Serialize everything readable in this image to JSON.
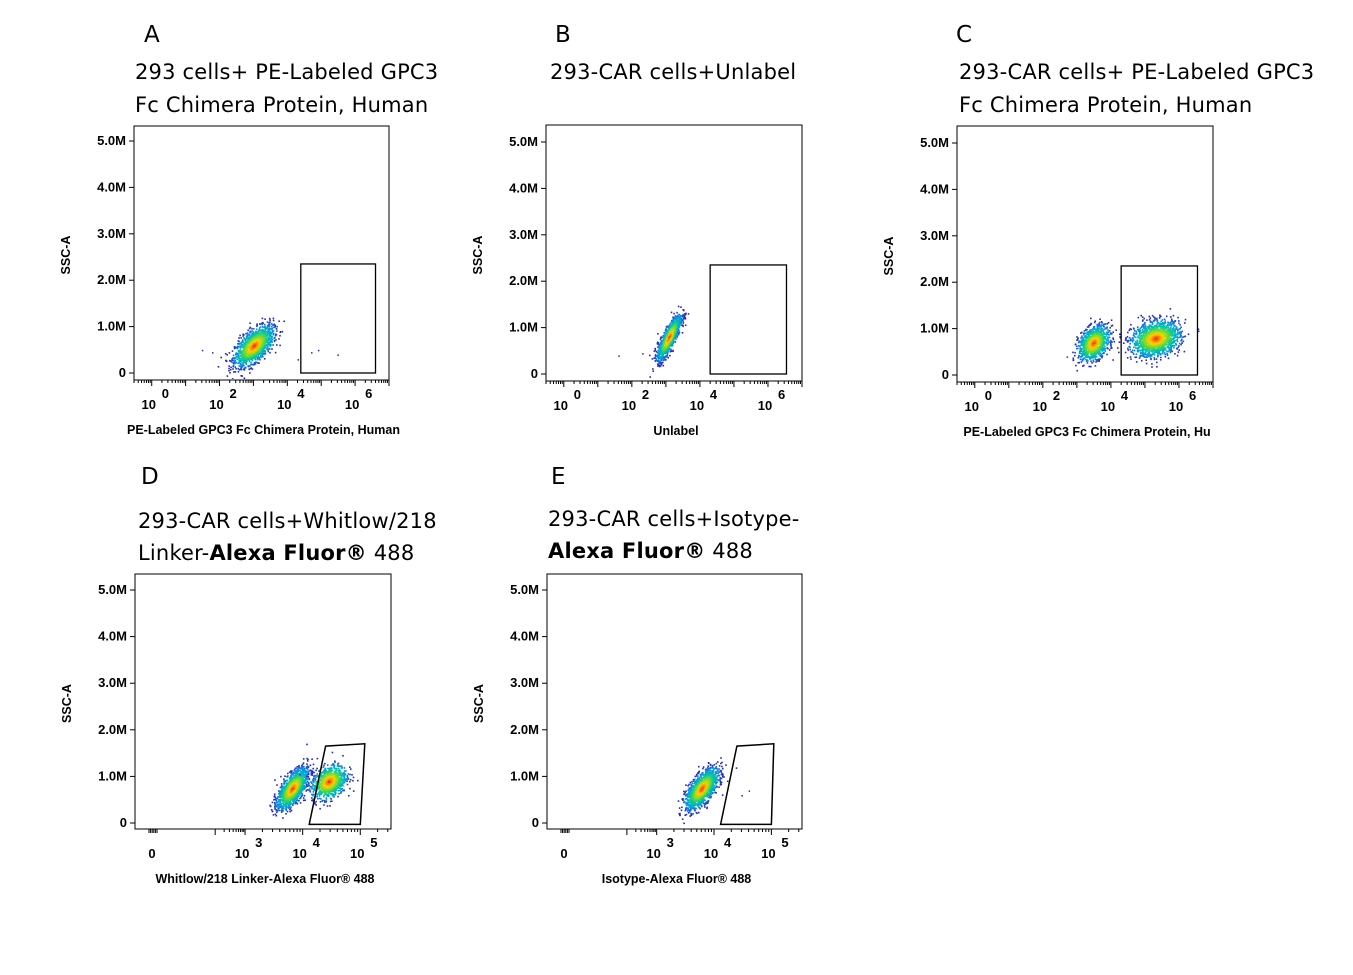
{
  "panels": [
    {
      "letter": "A",
      "title_line1": "293 cells+ PE-Labeled GPC3",
      "title_line2": "Fc Chimera Protein, Human",
      "title_line2_bold": "",
      "title_line2_rest": ""
    },
    {
      "letter": "B",
      "title_line1": "293-CAR cells+Unlabel",
      "title_line2": "",
      "title_line2_bold": "",
      "title_line2_rest": ""
    },
    {
      "letter": "C",
      "title_line1": "293-CAR  cells+  PE-Labeled  GPC3",
      "title_line2": "Fc Chimera Protein, Human",
      "title_line2_bold": "",
      "title_line2_rest": ""
    },
    {
      "letter": "D",
      "title_line1": "293-CAR   cells+Whitlow/218",
      "title_line2": "Linker-",
      "title_line2_bold": "Alexa Fluor®",
      "title_line2_rest": " 488"
    },
    {
      "letter": "E",
      "title_line1": "293-CAR      cells+Isotype-",
      "title_line2": "",
      "title_line2_bold": "Alexa Fluor®",
      "title_line2_rest": " 488"
    }
  ],
  "chart_data": [
    {
      "type": "scatter",
      "panel": "A",
      "xlabel": "PE-Labeled GPC3 Fc Chimera Protein, Human",
      "ylabel": "SSC-A",
      "x_scale": "log",
      "xlim": [
        0.3,
        10000000
      ],
      "x_tick_labels": [
        {
          "base": "10",
          "exp": "0",
          "value": 1
        },
        {
          "base": "10",
          "exp": "2",
          "value": 100
        },
        {
          "base": "10",
          "exp": "4",
          "value": 10000
        },
        {
          "base": "10",
          "exp": "6",
          "value": 1000000
        }
      ],
      "ylim": [
        -200000,
        5300000
      ],
      "y_tick_labels": [
        {
          "label": "0",
          "value": 0
        },
        {
          "label": "1.0M",
          "value": 1000000
        },
        {
          "label": "2.0M",
          "value": 2000000
        },
        {
          "label": "3.0M",
          "value": 3000000
        },
        {
          "label": "4.0M",
          "value": 4000000
        },
        {
          "label": "5.0M",
          "value": 5000000
        }
      ],
      "populations": [
        {
          "center_x": 1000,
          "center_y": 600000,
          "spread_x_decades": 0.28,
          "spread_y": 230000,
          "tilt": 0.55,
          "count": 1500
        }
      ],
      "stray_points": [
        [
          30,
          500000
        ],
        [
          60,
          450000
        ],
        [
          20000,
          300000
        ],
        [
          50000,
          450000
        ],
        [
          80000,
          500000
        ],
        [
          300000,
          400000
        ]
      ],
      "gate": {
        "shape": "rectangle",
        "x": [
          25000,
          4000000
        ],
        "y": [
          0,
          2350000
        ]
      }
    },
    {
      "type": "scatter",
      "panel": "B",
      "xlabel": "Unlabel",
      "ylabel": "SSC-A",
      "x_scale": "log",
      "xlim": [
        0.3,
        10000000
      ],
      "x_tick_labels": [
        {
          "base": "10",
          "exp": "0",
          "value": 1
        },
        {
          "base": "10",
          "exp": "2",
          "value": 100
        },
        {
          "base": "10",
          "exp": "4",
          "value": 10000
        },
        {
          "base": "10",
          "exp": "6",
          "value": 1000000
        }
      ],
      "ylim": [
        -200000,
        5300000
      ],
      "y_tick_labels": [
        {
          "label": "0",
          "value": 0
        },
        {
          "label": "1.0M",
          "value": 1000000
        },
        {
          "label": "2.0M",
          "value": 2000000
        },
        {
          "label": "3.0M",
          "value": 3000000
        },
        {
          "label": "4.0M",
          "value": 4000000
        },
        {
          "label": "5.0M",
          "value": 5000000
        }
      ],
      "populations": [
        {
          "center_x": 1200,
          "center_y": 800000,
          "spread_x_decades": 0.17,
          "spread_y": 230000,
          "tilt": 0.85,
          "count": 1300
        }
      ],
      "stray_points": [
        [
          40,
          400000
        ],
        [
          200,
          450000
        ],
        [
          500,
          500000
        ]
      ],
      "gate": {
        "shape": "rectangle",
        "x": [
          20000,
          3500000
        ],
        "y": [
          0,
          2350000
        ]
      }
    },
    {
      "type": "scatter",
      "panel": "C",
      "xlabel": "PE-Labeled GPC3 Fc Chimera Protein, Hu",
      "ylabel": "SSC-A",
      "x_scale": "log",
      "xlim": [
        0.3,
        10000000
      ],
      "x_tick_labels": [
        {
          "base": "10",
          "exp": "0",
          "value": 1
        },
        {
          "base": "10",
          "exp": "2",
          "value": 100
        },
        {
          "base": "10",
          "exp": "4",
          "value": 10000
        },
        {
          "base": "10",
          "exp": "6",
          "value": 1000000
        }
      ],
      "ylim": [
        -200000,
        5300000
      ],
      "y_tick_labels": [
        {
          "label": "0",
          "value": 0
        },
        {
          "label": "1.0M",
          "value": 1000000
        },
        {
          "label": "2.0M",
          "value": 2000000
        },
        {
          "label": "3.0M",
          "value": 3000000
        },
        {
          "label": "4.0M",
          "value": 4000000
        },
        {
          "label": "5.0M",
          "value": 5000000
        }
      ],
      "populations": [
        {
          "center_x": 3000,
          "center_y": 700000,
          "spread_x_decades": 0.22,
          "spread_y": 200000,
          "tilt": 0.3,
          "count": 1100
        },
        {
          "center_x": 200000,
          "center_y": 800000,
          "spread_x_decades": 0.35,
          "spread_y": 200000,
          "tilt": 0.2,
          "count": 1500
        }
      ],
      "stray_points": [
        [
          500,
          400000
        ]
      ],
      "gate": {
        "shape": "rectangle",
        "x": [
          20000,
          3500000
        ],
        "y": [
          0,
          2350000
        ]
      }
    },
    {
      "type": "scatter",
      "panel": "D",
      "xlabel": "Whitlow/218 Linker-Alexa Fluor® 488",
      "ylabel": "SSC-A",
      "x_scale": "biexponential",
      "x_tick_labels": [
        {
          "base": "0",
          "exp": "",
          "value": 0
        },
        {
          "base": "10",
          "exp": "3",
          "value": 1000
        },
        {
          "base": "10",
          "exp": "4",
          "value": 10000
        },
        {
          "base": "10",
          "exp": "5",
          "value": 100000
        }
      ],
      "ylim": [
        -200000,
        5300000
      ],
      "y_tick_labels": [
        {
          "label": "0",
          "value": 0
        },
        {
          "label": "1.0M",
          "value": 1000000
        },
        {
          "label": "2.0M",
          "value": 2000000
        },
        {
          "label": "3.0M",
          "value": 3000000
        },
        {
          "label": "4.0M",
          "value": 4000000
        },
        {
          "label": "5.0M",
          "value": 5000000
        }
      ],
      "populations": [
        {
          "center_x": 6500,
          "center_y": 750000,
          "spread_x_decades": 0.13,
          "spread_y": 230000,
          "tilt": 0.6,
          "count": 1400
        },
        {
          "center_x": 28000,
          "center_y": 900000,
          "spread_x_decades": 0.15,
          "spread_y": 200000,
          "tilt": 0.3,
          "count": 900
        }
      ],
      "stray_points": [],
      "gate": {
        "shape": "polygon",
        "points": [
          [
            13000,
            -30000
          ],
          [
            100000,
            -30000
          ],
          [
            120000,
            1700000
          ],
          [
            25000,
            1650000
          ]
        ]
      }
    },
    {
      "type": "scatter",
      "panel": "E",
      "xlabel": "Isotype-Alexa Fluor® 488",
      "ylabel": "SSC-A",
      "x_scale": "biexponential",
      "x_tick_labels": [
        {
          "base": "0",
          "exp": "",
          "value": 0
        },
        {
          "base": "10",
          "exp": "3",
          "value": 1000
        },
        {
          "base": "10",
          "exp": "4",
          "value": 10000
        },
        {
          "base": "10",
          "exp": "5",
          "value": 100000
        }
      ],
      "ylim": [
        -200000,
        5300000
      ],
      "y_tick_labels": [
        {
          "label": "0",
          "value": 0
        },
        {
          "label": "1.0M",
          "value": 1000000
        },
        {
          "label": "2.0M",
          "value": 2000000
        },
        {
          "label": "3.0M",
          "value": 3000000
        },
        {
          "label": "4.0M",
          "value": 4000000
        },
        {
          "label": "5.0M",
          "value": 5000000
        }
      ],
      "populations": [
        {
          "center_x": 6000,
          "center_y": 750000,
          "spread_x_decades": 0.14,
          "spread_y": 230000,
          "tilt": 0.6,
          "count": 1400
        }
      ],
      "stray_points": [
        [
          30000,
          600000
        ],
        [
          40000,
          700000
        ]
      ],
      "gate": {
        "shape": "polygon",
        "points": [
          [
            13000,
            -30000
          ],
          [
            100000,
            -30000
          ],
          [
            110000,
            1700000
          ],
          [
            25000,
            1650000
          ]
        ]
      }
    }
  ]
}
